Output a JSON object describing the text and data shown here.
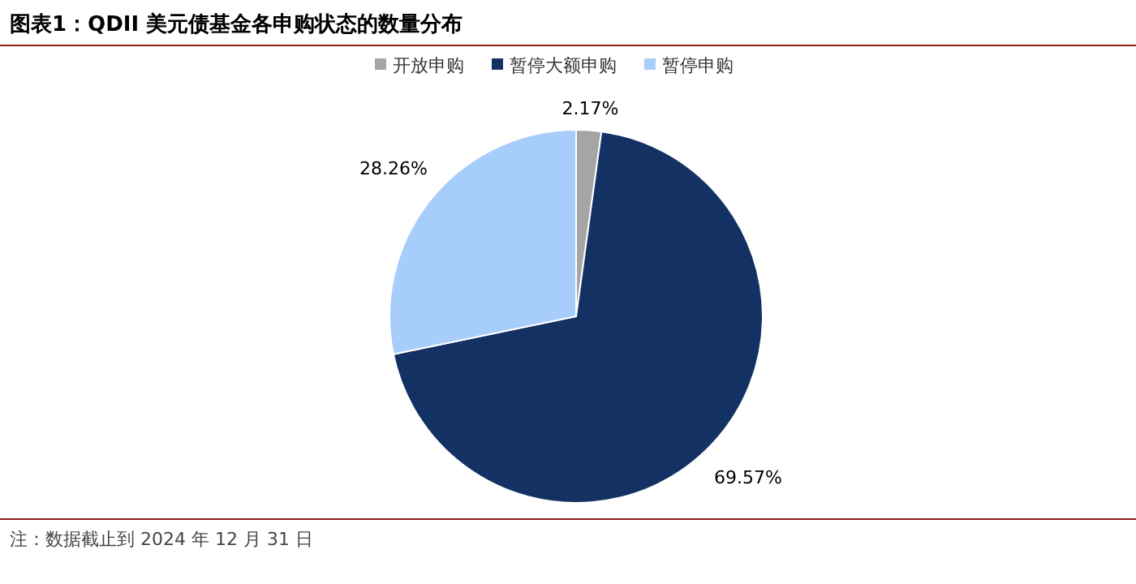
{
  "chart_data": {
    "type": "pie",
    "title": "图表1：QDII 美元债基金各申购状态的数量分布",
    "categories": [
      "开放申购",
      "暂停大额申购",
      "暂停申购"
    ],
    "values": [
      2.17,
      69.57,
      28.26
    ],
    "colors": [
      "#a5a5a5",
      "#133263",
      "#a7cdfb"
    ],
    "value_labels": [
      "2.17%",
      "69.57%",
      "28.26%"
    ],
    "legend": "top",
    "annotations": [
      "注：数据截止到 2024 年 12 月 31 日"
    ]
  }
}
